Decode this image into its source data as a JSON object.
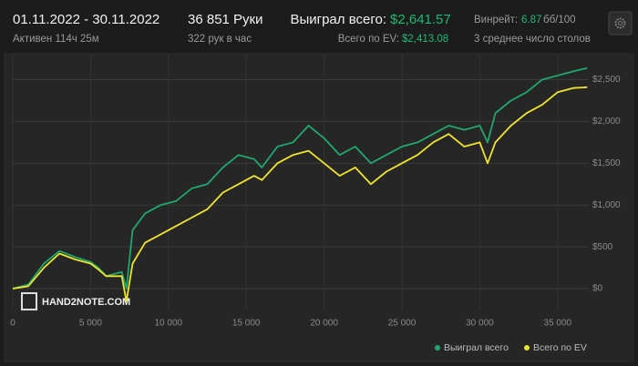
{
  "header": {
    "period": "01.11.2022 - 30.11.2022",
    "active": "Активен 114ч 25м",
    "hands": "36 851 Руки",
    "hands_per_hour": "322 рук в час",
    "won_label": "Выиграл всего:",
    "won_value": "$2,641.57",
    "ev_label": "Всего по EV:",
    "ev_value": "$2,413.08",
    "winrate_label": "Винрейт:",
    "winrate_value": "6.87",
    "winrate_unit": "бб/100",
    "tables": "3 среднее число столов",
    "logo": "HAND2NOTE.COM"
  },
  "chart_data": {
    "type": "line",
    "x": [
      0,
      1000,
      2000,
      3000,
      4000,
      5000,
      5500,
      6000,
      7000,
      7300,
      7700,
      8500,
      9500,
      10500,
      11500,
      12500,
      13500,
      14500,
      15500,
      16000,
      17000,
      18000,
      19000,
      20000,
      21000,
      22000,
      23000,
      24000,
      25000,
      26000,
      27000,
      28000,
      29000,
      30000,
      30500,
      31000,
      32000,
      33000,
      34000,
      35000,
      36000,
      36900
    ],
    "series": [
      {
        "name": "Выиграл всего",
        "color": "#1fa86e",
        "values": [
          0,
          50,
          300,
          450,
          380,
          320,
          250,
          150,
          200,
          0,
          700,
          900,
          1000,
          1050,
          1200,
          1250,
          1450,
          1600,
          1550,
          1450,
          1700,
          1750,
          1950,
          1800,
          1600,
          1700,
          1500,
          1600,
          1700,
          1750,
          1850,
          1950,
          1900,
          1950,
          1750,
          2100,
          2250,
          2350,
          2500,
          2550,
          2600,
          2640
        ]
      },
      {
        "name": "Всего по EV",
        "color": "#f0e52c",
        "values": [
          0,
          30,
          250,
          420,
          350,
          300,
          230,
          150,
          150,
          -150,
          300,
          550,
          650,
          750,
          850,
          950,
          1150,
          1250,
          1350,
          1300,
          1500,
          1600,
          1650,
          1500,
          1350,
          1450,
          1250,
          1400,
          1500,
          1600,
          1750,
          1850,
          1700,
          1750,
          1500,
          1750,
          1950,
          2100,
          2200,
          2350,
          2400,
          2410
        ]
      }
    ],
    "xlim": [
      0,
      37000
    ],
    "ylim": [
      -250,
      2800
    ],
    "xticks": [
      0,
      {
        "value": 5000,
        "label": "5 000"
      },
      {
        "value": 10000,
        "label": "10 000"
      },
      {
        "value": 15000,
        "label": "15 000"
      },
      {
        "value": 20000,
        "label": "20 000"
      },
      {
        "value": 25000,
        "label": "25 000"
      },
      {
        "value": 30000,
        "label": "30 000"
      },
      {
        "value": 35000,
        "label": "35 000"
      }
    ],
    "yticks": [
      {
        "value": 0,
        "label": "$0"
      },
      {
        "value": 500,
        "label": "$500"
      },
      {
        "value": 1000,
        "label": "$1,000"
      },
      {
        "value": 1500,
        "label": "$1,500"
      },
      {
        "value": 2000,
        "label": "$2,000"
      },
      {
        "value": 2500,
        "label": "$2,500"
      }
    ],
    "grid": true
  }
}
